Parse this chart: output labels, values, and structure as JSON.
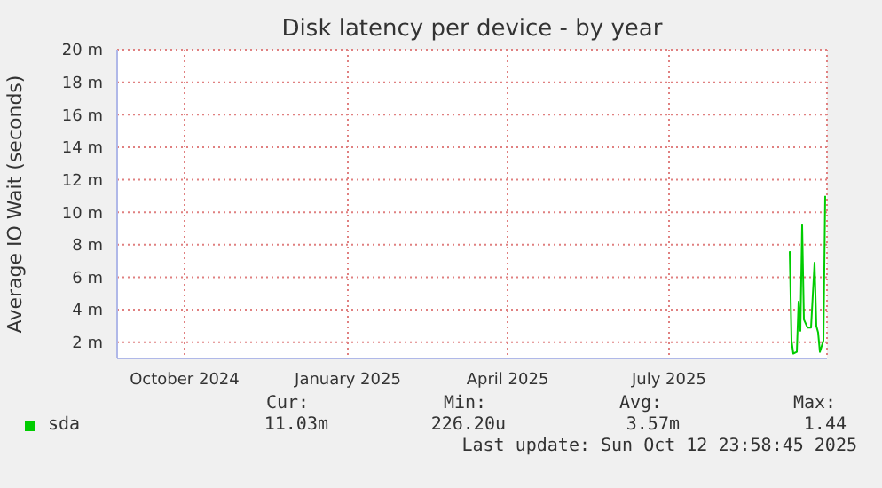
{
  "chart_data": {
    "type": "line",
    "title": "Disk latency per device - by year",
    "ylabel": "Average IO Wait (seconds)",
    "x": [
      "2025-09-22",
      "2025-09-23",
      "2025-09-24",
      "2025-09-26",
      "2025-09-27",
      "2025-09-28",
      "2025-09-29",
      "2025-09-30",
      "2025-10-02",
      "2025-10-04",
      "2025-10-06",
      "2025-10-07",
      "2025-10-08",
      "2025-10-09",
      "2025-10-11",
      "2025-10-12"
    ],
    "series": [
      {
        "name": "sda",
        "color": "#00cc00",
        "values": [
          7.6,
          2.1,
          1.3,
          1.4,
          4.5,
          2.7,
          9.2,
          3.4,
          2.9,
          2.9,
          6.9,
          3.0,
          2.6,
          1.4,
          2.1,
          11.0
        ]
      }
    ],
    "xlim": [
      "2024-09-08",
      "2025-10-13"
    ],
    "xticks": [
      {
        "value": "2024-10-16",
        "label": "October 2024"
      },
      {
        "value": "2025-01-16",
        "label": "January 2025"
      },
      {
        "value": "2025-04-16",
        "label": "April 2025"
      },
      {
        "value": "2025-07-16",
        "label": "July 2025"
      }
    ],
    "ylim": [
      1,
      20
    ],
    "yticks": [
      {
        "value": 2,
        "label": "2 m"
      },
      {
        "value": 4,
        "label": "4 m"
      },
      {
        "value": 6,
        "label": "6 m"
      },
      {
        "value": 8,
        "label": "8 m"
      },
      {
        "value": 10,
        "label": "10 m"
      },
      {
        "value": 12,
        "label": "12 m"
      },
      {
        "value": 14,
        "label": "14 m"
      },
      {
        "value": 16,
        "label": "16 m"
      },
      {
        "value": 18,
        "label": "18 m"
      },
      {
        "value": 20,
        "label": "20 m"
      }
    ],
    "grid": true,
    "legend": "bottom",
    "marker": "none",
    "line_style": "solid",
    "annotations": [
      "Cur:",
      "Min:",
      "Avg:",
      "Max:",
      "11.03m",
      "226.20u",
      "3.57m",
      "1.44",
      "Last update: Sun Oct 12 23:58:45 2025"
    ]
  }
}
